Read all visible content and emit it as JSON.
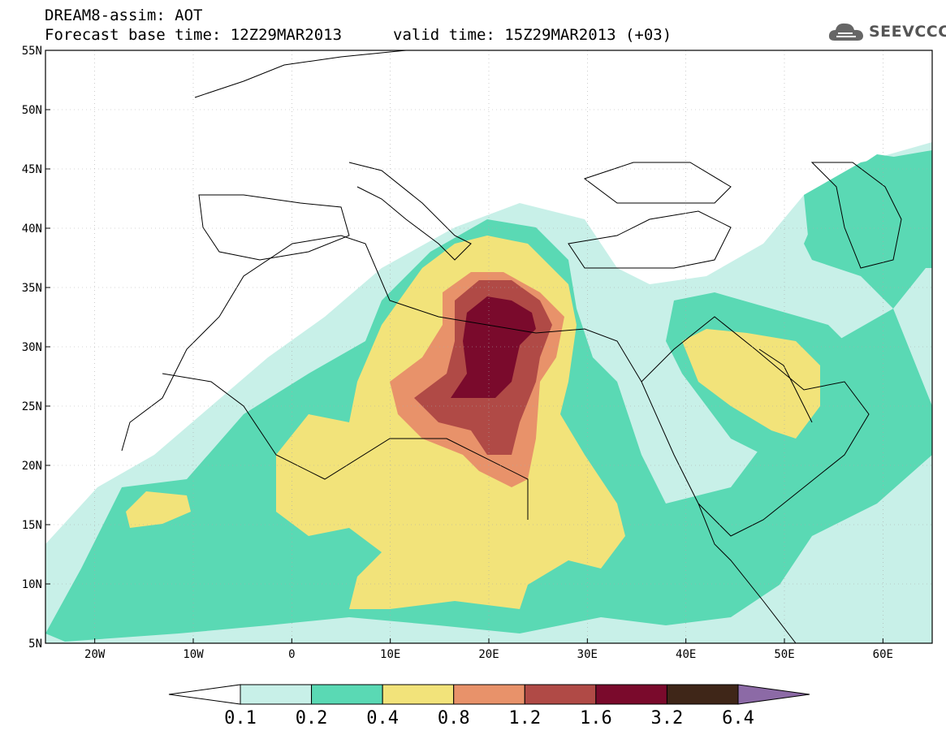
{
  "header": {
    "line1": "DREAM8-assim: AOT",
    "line2": "Forecast base time: 12Z29MAR2013",
    "valid": "valid time: 15Z29MAR2013 (+03)"
  },
  "logo": {
    "icon": "cloud-icon",
    "text": "SEEVCCC"
  },
  "map": {
    "lat_labels": [
      "55N",
      "50N",
      "45N",
      "40N",
      "35N",
      "30N",
      "25N",
      "20N",
      "15N",
      "10N",
      "5N"
    ],
    "lon_labels": [
      "20W",
      "10W",
      "0",
      "10E",
      "20E",
      "30E",
      "40E",
      "50E",
      "60E"
    ],
    "lat_range": [
      5,
      55
    ],
    "lon_range": [
      -25,
      65
    ]
  },
  "colorbar": {
    "labels": [
      "0.1",
      "0.2",
      "0.4",
      "0.8",
      "1.2",
      "1.6",
      "3.2",
      "6.4"
    ],
    "colors": [
      "#ffffff",
      "#c8f0e8",
      "#5ad9b4",
      "#f2e37a",
      "#e8926a",
      "#b04a46",
      "#7a0a2c",
      "#3f2618",
      "#8c6aa6"
    ]
  },
  "legend_colors": {
    "low": "#c8f0e8",
    "mid": "#5ad9b4",
    "yellow": "#f2e37a",
    "orange": "#e8926a",
    "red": "#b04a46",
    "maroon": "#7a0a2c"
  }
}
